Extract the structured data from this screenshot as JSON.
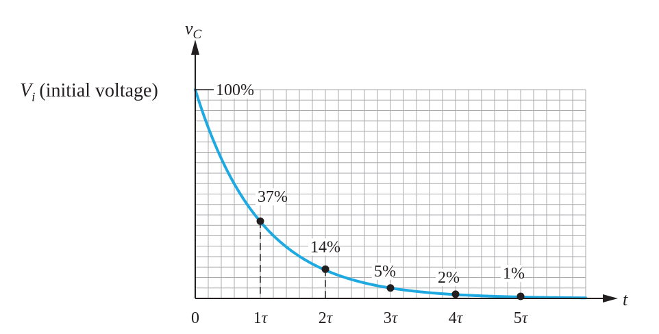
{
  "chart_data": {
    "type": "line",
    "ylabel": {
      "symbol": "v",
      "subscript": "C"
    },
    "xlabel": "t",
    "y_top_label": {
      "symbol": "V",
      "subscript": "i",
      "text": "(initial voltage)"
    },
    "x_ticks": [
      "0",
      "1τ",
      "2τ",
      "3τ",
      "4τ",
      "5τ"
    ],
    "xlim": [
      0,
      6
    ],
    "ylim": [
      0,
      100
    ],
    "curve": {
      "formula": "100·e^(−t/τ)",
      "color": "#1fa9e1"
    },
    "points": [
      {
        "x": 0,
        "y": 100,
        "label": "100%"
      },
      {
        "x": 1,
        "y": 37,
        "label": "37%"
      },
      {
        "x": 2,
        "y": 14,
        "label": "14%"
      },
      {
        "x": 3,
        "y": 5,
        "label": "5%"
      },
      {
        "x": 4,
        "y": 2,
        "label": "2%"
      },
      {
        "x": 5,
        "y": 1,
        "label": "1%"
      }
    ],
    "grid": true
  }
}
